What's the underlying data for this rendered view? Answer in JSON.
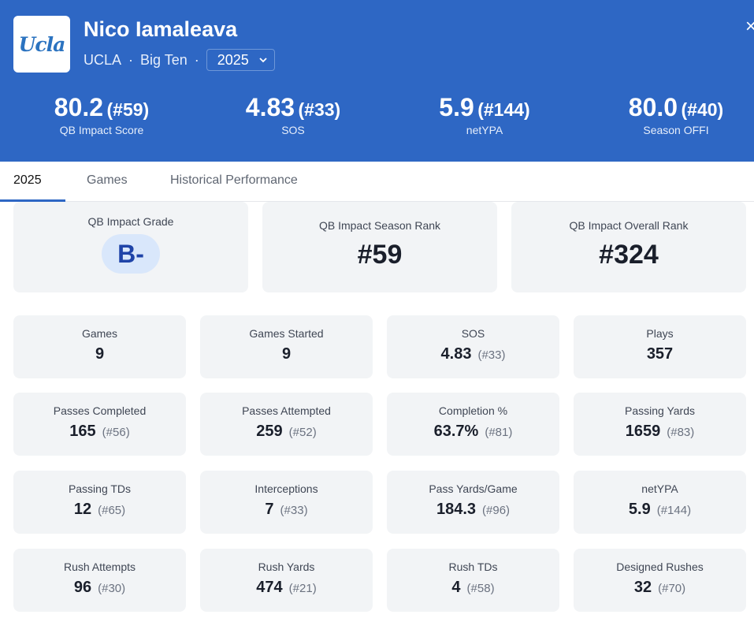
{
  "header": {
    "logo_text": "Ucla",
    "player_name": "Nico Iamaleava",
    "team": "UCLA",
    "conference": "Big Ten",
    "separator": "·",
    "season": "2025",
    "close": "×"
  },
  "summary": [
    {
      "value": "80.2",
      "rank": "(#59)",
      "label": "QB Impact Score"
    },
    {
      "value": "4.83",
      "rank": "(#33)",
      "label": "SOS"
    },
    {
      "value": "5.9",
      "rank": "(#144)",
      "label": "netYPA"
    },
    {
      "value": "80.0",
      "rank": "(#40)",
      "label": "Season OFFI"
    }
  ],
  "tabs": [
    {
      "label": "2025",
      "active": true
    },
    {
      "label": "Games"
    },
    {
      "label": "Historical Performance"
    }
  ],
  "impact": {
    "grade_label": "QB Impact Grade",
    "grade": "B-",
    "season_rank_label": "QB Impact Season Rank",
    "season_rank": "#59",
    "overall_rank_label": "QB Impact Overall Rank",
    "overall_rank": "#324"
  },
  "stats": [
    {
      "label": "Games",
      "value": "9",
      "rank": ""
    },
    {
      "label": "Games Started",
      "value": "9",
      "rank": ""
    },
    {
      "label": "SOS",
      "value": "4.83",
      "rank": "(#33)"
    },
    {
      "label": "Plays",
      "value": "357",
      "rank": ""
    },
    {
      "label": "Passes Completed",
      "value": "165",
      "rank": "(#56)"
    },
    {
      "label": "Passes Attempted",
      "value": "259",
      "rank": "(#52)"
    },
    {
      "label": "Completion %",
      "value": "63.7%",
      "rank": "(#81)"
    },
    {
      "label": "Passing Yards",
      "value": "1659",
      "rank": "(#83)"
    },
    {
      "label": "Passing TDs",
      "value": "12",
      "rank": "(#65)"
    },
    {
      "label": "Interceptions",
      "value": "7",
      "rank": "(#33)"
    },
    {
      "label": "Pass Yards/Game",
      "value": "184.3",
      "rank": "(#96)"
    },
    {
      "label": "netYPA",
      "value": "5.9",
      "rank": "(#144)"
    },
    {
      "label": "Rush Attempts",
      "value": "96",
      "rank": "(#30)"
    },
    {
      "label": "Rush Yards",
      "value": "474",
      "rank": "(#21)"
    },
    {
      "label": "Rush TDs",
      "value": "4",
      "rank": "(#58)"
    },
    {
      "label": "Designed Rushes",
      "value": "32",
      "rank": "(#70)"
    }
  ]
}
